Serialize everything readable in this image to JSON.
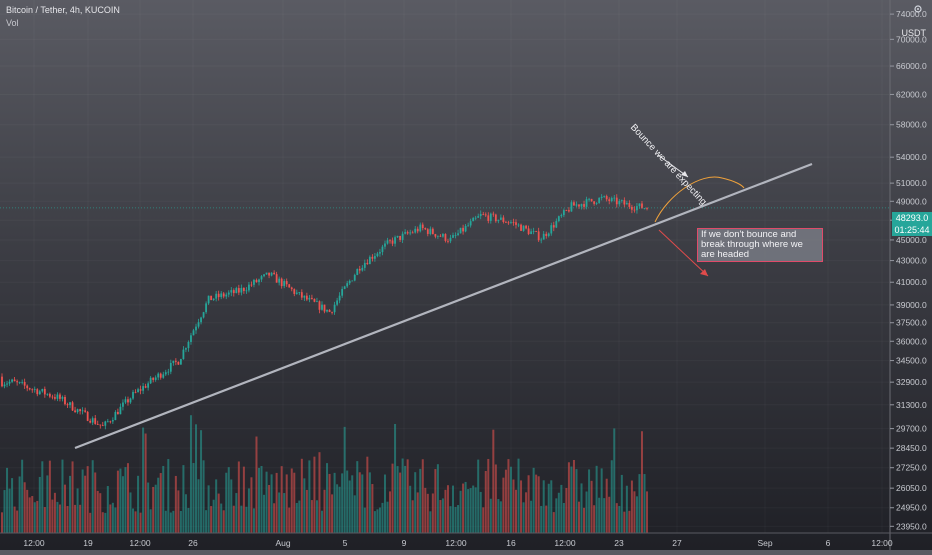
{
  "header": {
    "symbol_title": "Bitcoin / Tether, 4h, KUCOIN",
    "volume_label": "Vol",
    "currency": "USDT"
  },
  "current_price": {
    "price": "48293.0",
    "countdown": "01:25:44",
    "color": "#26a69a"
  },
  "annotations": {
    "bounce_text": "Bounce we are expecting",
    "break_text": "If we don't bounce and break through where we are headed"
  },
  "colors": {
    "up": "#26a69a",
    "down": "#ef5350",
    "trendline": "#b2b5be",
    "arc": "#f0a23b",
    "arrow": "#e04b4b",
    "box_border": "#e04b6a"
  },
  "chart_data": {
    "type": "candlestick",
    "title": "Bitcoin / Tether, 4h, KUCOIN",
    "price_axis": {
      "labels": [
        "74000.0",
        "70000.0",
        "66000.0",
        "62000.0",
        "58000.0",
        "54000.0",
        "51000.0",
        "49000.0",
        "47000.0",
        "45000.0",
        "43000.0",
        "41000.0",
        "39000.0",
        "37500.0",
        "36000.0",
        "34500.0",
        "32900.0",
        "31300.0",
        "29700.0",
        "28450.0",
        "27250.0",
        "26050.0",
        "24950.0",
        "23950.0"
      ],
      "scale": "log"
    },
    "time_axis": {
      "labels": [
        "12:00",
        "19",
        "12:00",
        "26",
        "Aug",
        "5",
        "9",
        "12:00",
        "16",
        "12:00",
        "23",
        "27",
        "Sep",
        "6",
        "12:00"
      ]
    },
    "price_range": [
      23600,
      76000
    ],
    "trendline": {
      "from": [
        "2021-07-17",
        28950
      ],
      "to": [
        "2021-09-05",
        54300
      ]
    },
    "ohlc_keypoints": [
      [
        "2021-07-14",
        32900
      ],
      [
        "2021-07-17",
        31800
      ],
      [
        "2021-07-20",
        29800
      ],
      [
        "2021-07-22",
        32000
      ],
      [
        "2021-07-25",
        34500
      ],
      [
        "2021-07-27",
        39500
      ],
      [
        "2021-07-29",
        40200
      ],
      [
        "2021-07-31",
        41700
      ],
      [
        "2021-08-02",
        39800
      ],
      [
        "2021-08-04",
        38400
      ],
      [
        "2021-08-06",
        42500
      ],
      [
        "2021-08-08",
        44800
      ],
      [
        "2021-08-10",
        46200
      ],
      [
        "2021-08-12",
        45000
      ],
      [
        "2021-08-14",
        47500
      ],
      [
        "2021-08-16",
        46800
      ],
      [
        "2021-08-18",
        45200
      ],
      [
        "2021-08-20",
        48500
      ],
      [
        "2021-08-22",
        49300
      ],
      [
        "2021-08-24",
        48500
      ],
      [
        "2021-08-25",
        48293
      ]
    ]
  }
}
